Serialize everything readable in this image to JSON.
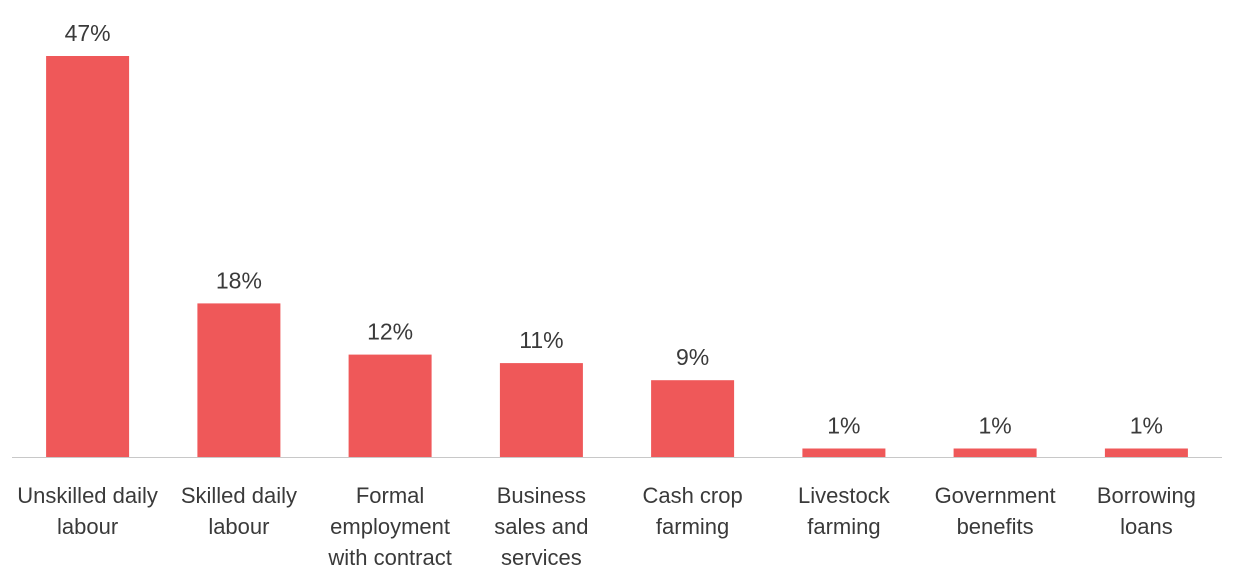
{
  "chart_data": {
    "type": "bar",
    "title": "",
    "xlabel": "",
    "ylabel": "",
    "ylim": [
      0,
      47
    ],
    "grid": false,
    "legend": "none",
    "bar_color": "#EF5859",
    "axis_color": "#c8c8c8",
    "text_color": "#3a3a3a",
    "value_suffix": "%",
    "categories": [
      [
        "Unskilled daily",
        "labour"
      ],
      [
        "Skilled daily",
        "labour"
      ],
      [
        "Formal",
        "employment",
        "with contract"
      ],
      [
        "Business",
        "sales and",
        "services"
      ],
      [
        "Cash crop",
        "farming"
      ],
      [
        "Livestock",
        "farming"
      ],
      [
        "Government",
        "benefits"
      ],
      [
        "Borrowing",
        "loans"
      ]
    ],
    "values": [
      47,
      18,
      12,
      11,
      9,
      1,
      1,
      1
    ],
    "data_labels": [
      "47%",
      "18%",
      "12%",
      "11%",
      "9%",
      "1%",
      "1%",
      "1%"
    ]
  }
}
